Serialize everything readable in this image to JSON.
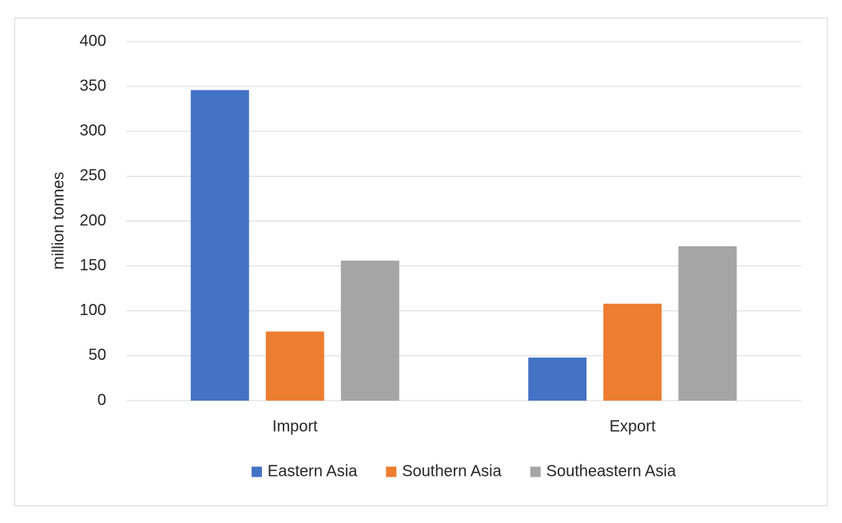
{
  "chart_data": {
    "type": "bar",
    "y_label": "million tonnes",
    "categories": [
      "Import",
      "Export"
    ],
    "series": [
      {
        "name": "Eastern Asia",
        "color": "#4472c4",
        "values": [
          346,
          48
        ]
      },
      {
        "name": "Southern Asia",
        "color": "#ed7d31",
        "values": [
          77,
          108
        ]
      },
      {
        "name": "Southeastern Asia",
        "color": "#a5a5a5",
        "values": [
          156,
          172
        ]
      }
    ],
    "ylim": [
      0,
      400
    ],
    "yticks": [
      0,
      50,
      100,
      150,
      200,
      250,
      300,
      350,
      400
    ],
    "grid": true,
    "legend": "bottom"
  }
}
